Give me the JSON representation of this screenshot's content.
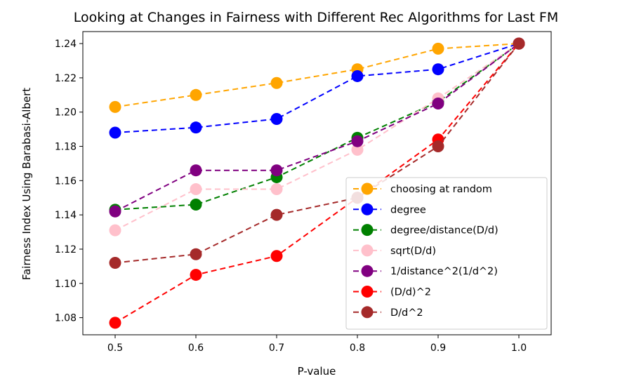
{
  "chart_data": {
    "type": "line",
    "title": "Looking at Changes in Fairness with Different Rec Algorithms for Last FM",
    "xlabel": "P-value",
    "ylabel": "Fairness Index Using Barabasi-Albert",
    "x": [
      0.5,
      0.6,
      0.7,
      0.8,
      0.9,
      1.0
    ],
    "x_tick_labels": [
      "0.5",
      "0.6",
      "0.7",
      "0.8",
      "0.9",
      "1.0"
    ],
    "xlim": [
      0.46,
      1.04
    ],
    "ylim": [
      1.07,
      1.247
    ],
    "y_ticks": [
      1.08,
      1.1,
      1.12,
      1.14,
      1.16,
      1.18,
      1.2,
      1.22,
      1.24
    ],
    "y_tick_labels": [
      "1.08",
      "1.10",
      "1.12",
      "1.14",
      "1.16",
      "1.18",
      "1.20",
      "1.22",
      "1.24"
    ],
    "grid": false,
    "legend_position": "lower-right",
    "line_style": "dashed",
    "marker": "circle",
    "series": [
      {
        "name": "choosing at random",
        "color": "#ffa500",
        "values": [
          1.203,
          1.21,
          1.217,
          1.225,
          1.237,
          1.24
        ]
      },
      {
        "name": "degree",
        "color": "#0000ff",
        "values": [
          1.188,
          1.191,
          1.196,
          1.221,
          1.225,
          1.24
        ]
      },
      {
        "name": "degree/distance(D/d)",
        "color": "#008000",
        "values": [
          1.143,
          1.146,
          1.162,
          1.185,
          1.206,
          1.24
        ]
      },
      {
        "name": "sqrt(D/d)",
        "color": "#ffc0cb",
        "values": [
          1.131,
          1.155,
          1.155,
          1.178,
          1.208,
          1.24
        ]
      },
      {
        "name": "1/distance^2(1/d^2)",
        "color": "#800080",
        "values": [
          1.142,
          1.166,
          1.166,
          1.183,
          1.205,
          1.24
        ]
      },
      {
        "name": "(D/d)^2",
        "color": "#ff0000",
        "values": [
          1.077,
          1.105,
          1.116,
          1.15,
          1.184,
          1.24
        ]
      },
      {
        "name": "D/d^2",
        "color": "#a52a2a",
        "values": [
          1.112,
          1.117,
          1.14,
          1.15,
          1.18,
          1.24
        ]
      }
    ]
  }
}
